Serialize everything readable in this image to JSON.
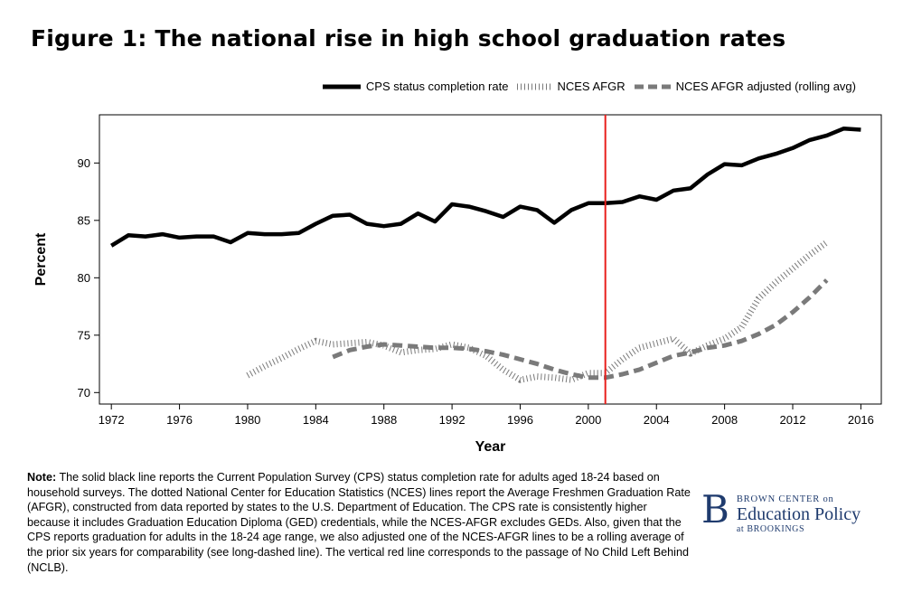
{
  "header": {
    "title": "Figure 1: The national rise in high school graduation rates"
  },
  "chart_data": {
    "type": "line",
    "xlabel": "Year",
    "ylabel": "Percent",
    "xlim": [
      1971.3,
      2017.2
    ],
    "ylim": [
      69.0,
      94.2
    ],
    "xticks": [
      1972,
      1976,
      1980,
      1984,
      1988,
      1992,
      1996,
      2000,
      2004,
      2008,
      2012,
      2016
    ],
    "yticks": [
      70,
      75,
      80,
      85,
      90
    ],
    "vline": {
      "x": 2001,
      "color": "#e8201d"
    },
    "series": [
      {
        "name": "CPS status completion rate",
        "style": "solid",
        "color": "#000000",
        "x": [
          1972,
          1973,
          1974,
          1975,
          1976,
          1977,
          1978,
          1979,
          1980,
          1981,
          1982,
          1983,
          1984,
          1985,
          1986,
          1987,
          1988,
          1989,
          1990,
          1991,
          1992,
          1993,
          1994,
          1995,
          1996,
          1997,
          1998,
          1999,
          2000,
          2001,
          2002,
          2003,
          2004,
          2005,
          2006,
          2007,
          2008,
          2009,
          2010,
          2011,
          2012,
          2013,
          2014,
          2015,
          2016
        ],
        "values": [
          82.8,
          83.7,
          83.6,
          83.8,
          83.5,
          83.6,
          83.6,
          83.1,
          83.9,
          83.8,
          83.8,
          83.9,
          84.7,
          85.4,
          85.5,
          84.7,
          84.5,
          84.7,
          85.6,
          84.9,
          86.4,
          86.2,
          85.8,
          85.3,
          86.2,
          85.9,
          84.8,
          85.9,
          86.5,
          86.5,
          86.6,
          87.1,
          86.8,
          87.6,
          87.8,
          89.0,
          89.9,
          89.8,
          90.4,
          90.8,
          91.3,
          92.0,
          92.4,
          93.0,
          92.9
        ]
      },
      {
        "name": "NCES AFGR",
        "style": "dotted",
        "color": "#7a7a7a",
        "x": [
          1980,
          1981,
          1982,
          1983,
          1984,
          1985,
          1986,
          1987,
          1988,
          1989,
          1990,
          1991,
          1992,
          1993,
          1994,
          1995,
          1996,
          1997,
          1998,
          1999,
          2000,
          2001,
          2002,
          2003,
          2004,
          2005,
          2006,
          2007,
          2008,
          2009,
          2010,
          2011,
          2012,
          2013,
          2014
        ],
        "values": [
          71.5,
          72.3,
          73.0,
          73.8,
          74.5,
          74.2,
          74.3,
          74.4,
          74.1,
          73.5,
          73.7,
          73.8,
          74.2,
          73.9,
          73.2,
          72.0,
          71.1,
          71.4,
          71.3,
          71.1,
          71.7,
          71.7,
          72.9,
          73.9,
          74.3,
          74.7,
          73.4,
          74.1,
          74.7,
          75.7,
          78.2,
          79.6,
          80.8,
          82.0,
          83.1
        ]
      },
      {
        "name": "NCES AFGR adjusted (rolling avg)",
        "style": "dashed",
        "color": "#7a7a7a",
        "x": [
          1985,
          1986,
          1987,
          1988,
          1989,
          1990,
          1991,
          1992,
          1993,
          1994,
          1995,
          1996,
          1997,
          1998,
          1999,
          2000,
          2001,
          2002,
          2003,
          2004,
          2005,
          2006,
          2007,
          2008,
          2009,
          2010,
          2011,
          2012,
          2013,
          2014
        ],
        "values": [
          73.1,
          73.7,
          74.0,
          74.2,
          74.1,
          74.0,
          73.9,
          73.9,
          73.8,
          73.6,
          73.3,
          72.9,
          72.5,
          72.0,
          71.6,
          71.3,
          71.3,
          71.6,
          72.0,
          72.6,
          73.2,
          73.5,
          73.9,
          74.1,
          74.5,
          75.1,
          75.9,
          77.0,
          78.3,
          79.8
        ]
      }
    ]
  },
  "note": {
    "label": "Note:",
    "text": " The solid black line reports the Current Population Survey (CPS) status completion rate for adults aged 18-24 based on household surveys. The dotted National Center for Education Statistics (NCES) lines report the Average Freshmen Graduation Rate (AFGR), constructed from data reported by states to the U.S. Department of Education. The CPS rate is consistently higher because it includes Graduation Education Diploma (GED) credentials, while the NCES-AFGR excludes GEDs. Also, given that the CPS reports graduation for adults in the 18-24 age range, we also adjusted one of the NCES-AFGR lines to be a rolling average of the prior six years for comparability (see long-dashed line). The vertical red line corresponds to the passage of No Child Left Behind (NCLB)."
  },
  "logo": {
    "letter": "B",
    "line1": "BROWN CENTER on",
    "line2": "Education Policy",
    "line3": "at BROOKINGS",
    "color": "#1f3b6e"
  }
}
